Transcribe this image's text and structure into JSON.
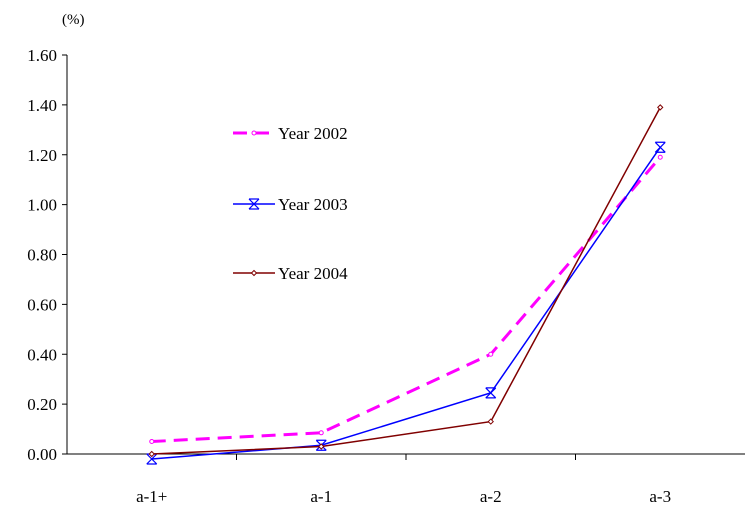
{
  "chart_data": {
    "type": "line",
    "unit_label": "(%)",
    "categories": [
      "a-1+",
      "a-1",
      "a-2",
      "a-3"
    ],
    "ylim": [
      0,
      1.6
    ],
    "yticks": [
      "0.00",
      "0.20",
      "0.40",
      "0.60",
      "0.80",
      "1.00",
      "1.20",
      "1.40",
      "1.60"
    ],
    "legend_position": "center-left",
    "grid": false,
    "series": [
      {
        "name": "Year 2002",
        "values": [
          0.05,
          0.085,
          0.4,
          1.19
        ],
        "color": "#ff00ff",
        "dash": "dashed",
        "marker": "circle"
      },
      {
        "name": "Year 2003",
        "values": [
          -0.02,
          0.035,
          0.245,
          1.23
        ],
        "color": "#0000ff",
        "dash": "solid",
        "marker": "star"
      },
      {
        "name": "Year 2004",
        "values": [
          0.0,
          0.03,
          0.13,
          1.39
        ],
        "color": "#800000",
        "dash": "solid",
        "marker": "diamond"
      }
    ]
  }
}
